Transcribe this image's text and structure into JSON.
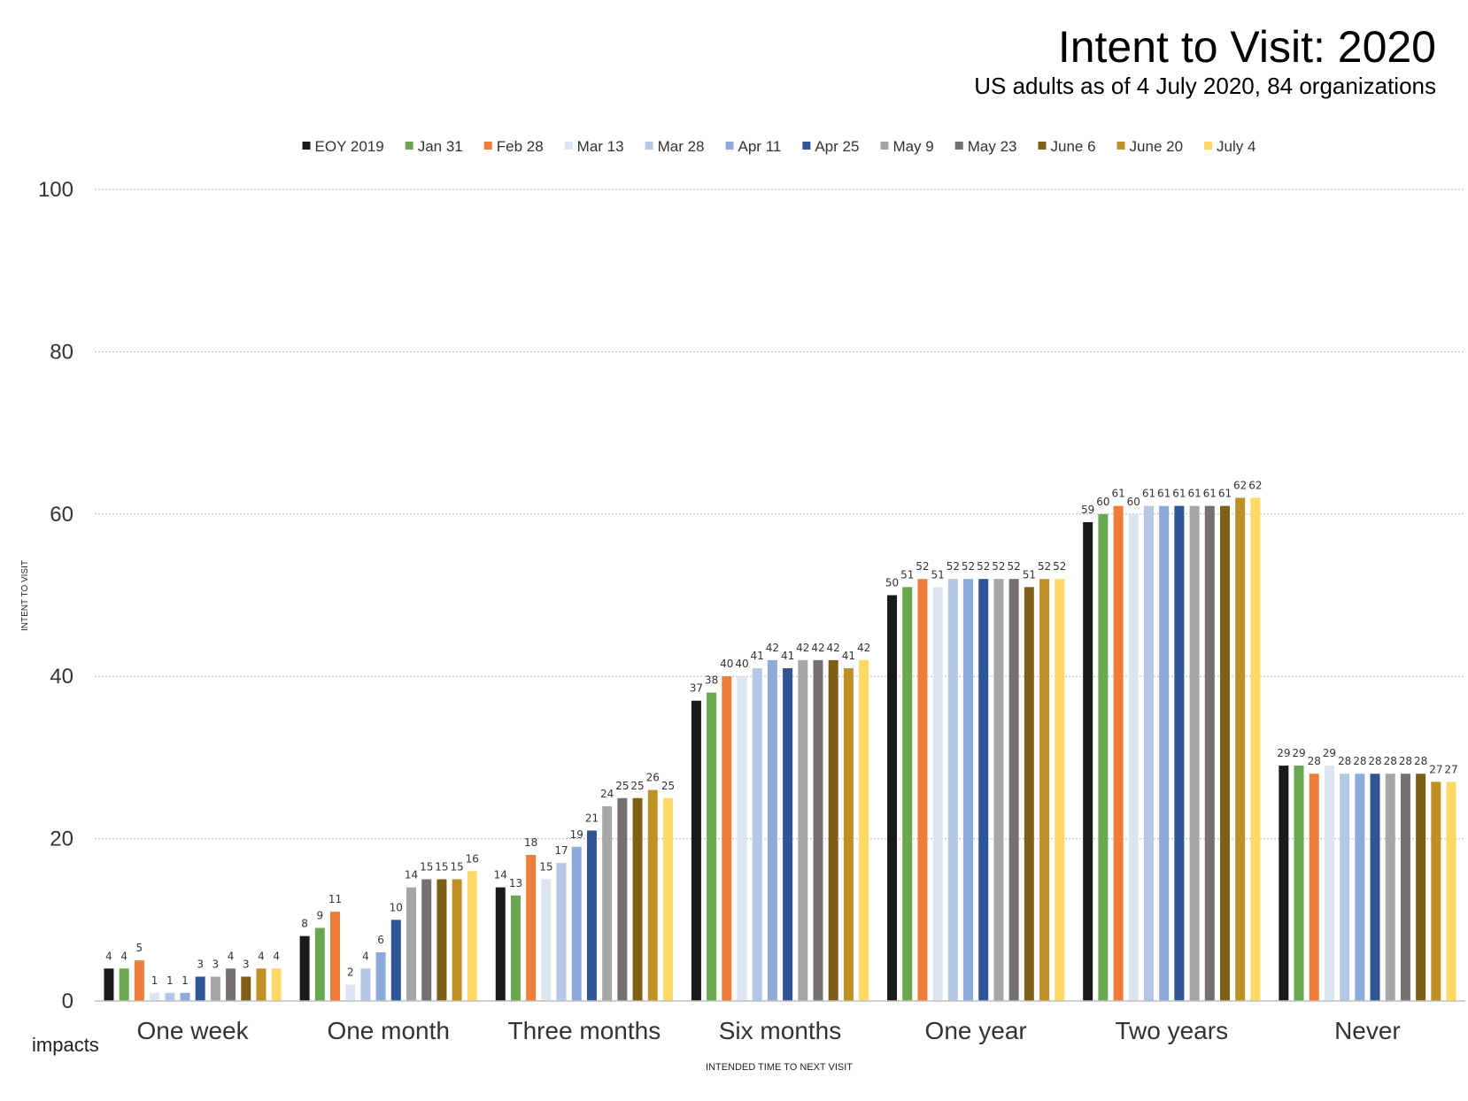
{
  "header": {
    "title": "Intent to Visit: 2020",
    "subtitle": "US adults as of 4 July 2020, 84 organizations"
  },
  "brand": {
    "mark": "i",
    "name": "mpacts"
  },
  "colors": {
    "EOY 2019": "#1a1a1a",
    "Jan 31": "#6aa84f",
    "Feb 28": "#ee7d3a",
    "Mar 13": "#dce6f2",
    "Mar 28": "#b4c7e7",
    "Apr 11": "#8eaadb",
    "Apr 25": "#2f5597",
    "May 9": "#a6a6a6",
    "May 23": "#757171",
    "June 6": "#7f5f17",
    "June 20": "#bf9026",
    "July 4": "#ffd966"
  },
  "chart_data": {
    "type": "bar",
    "title": "Intent to Visit: 2020",
    "subtitle": "US adults as of 4 July 2020, 84 organizations",
    "xlabel": "INTENDED TIME TO NEXT VISIT",
    "ylabel": "INTENT TO VISIT",
    "ylim": [
      0,
      100
    ],
    "yticks": [
      "0",
      "20",
      "40",
      "60",
      "80",
      "100"
    ],
    "grid": true,
    "legend": "top",
    "categories": [
      "One week",
      "One month",
      "Three months",
      "Six months",
      "One year",
      "Two years",
      "Never"
    ],
    "series": [
      {
        "name": "EOY 2019",
        "values": [
          4,
          8,
          14,
          37,
          50,
          59,
          29
        ]
      },
      {
        "name": "Jan 31",
        "values": [
          4,
          9,
          13,
          38,
          51,
          60,
          29
        ]
      },
      {
        "name": "Feb 28",
        "values": [
          5,
          11,
          18,
          40,
          52,
          61,
          28
        ]
      },
      {
        "name": "Mar 13",
        "values": [
          1,
          2,
          15,
          40,
          51,
          60,
          29
        ]
      },
      {
        "name": "Mar 28",
        "values": [
          1,
          4,
          17,
          41,
          52,
          61,
          28
        ]
      },
      {
        "name": "Apr 11",
        "values": [
          1,
          6,
          19,
          42,
          52,
          61,
          28
        ]
      },
      {
        "name": "Apr 25",
        "values": [
          3,
          10,
          21,
          41,
          52,
          61,
          28
        ]
      },
      {
        "name": "May 9",
        "values": [
          3,
          14,
          24,
          42,
          52,
          61,
          28
        ]
      },
      {
        "name": "May 23",
        "values": [
          4,
          15,
          25,
          42,
          52,
          61,
          28
        ]
      },
      {
        "name": "June 6",
        "values": [
          3,
          15,
          25,
          42,
          51,
          61,
          28
        ]
      },
      {
        "name": "June 20",
        "values": [
          4,
          15,
          26,
          41,
          52,
          62,
          27
        ]
      },
      {
        "name": "July 4",
        "values": [
          4,
          16,
          25,
          42,
          52,
          62,
          27
        ]
      }
    ]
  }
}
